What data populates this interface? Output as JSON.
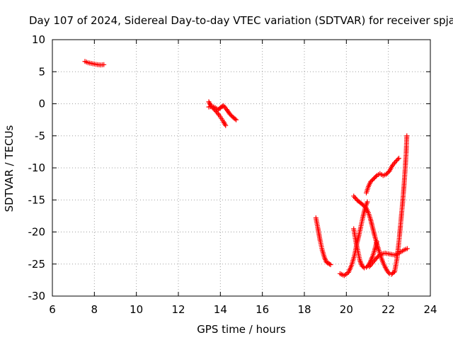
{
  "chart_data": {
    "type": "scatter",
    "title": "Day 107 of 2024, Sidereal Day-to-day VTEC variation (SDTVAR) for receiver spja",
    "xlabel": "GPS time / hours",
    "ylabel": "SDTVAR / TECUs",
    "xlim": [
      6,
      24
    ],
    "ylim": [
      -30,
      10
    ],
    "xticks": [
      6,
      8,
      10,
      12,
      14,
      16,
      18,
      20,
      22,
      24
    ],
    "yticks": [
      -30,
      -25,
      -20,
      -15,
      -10,
      -5,
      0,
      5,
      10
    ],
    "grid": true,
    "marker": "+",
    "color": "#ff0000",
    "series": [
      {
        "x": [
          7.55,
          7.7,
          7.85,
          8.0,
          8.15,
          8.3,
          8.45
        ],
        "y": [
          6.6,
          6.4,
          6.3,
          6.2,
          6.1,
          6.05,
          6.1
        ]
      },
      {
        "x": [
          13.45,
          13.55,
          13.65,
          13.75,
          13.85,
          13.95,
          14.05,
          14.15,
          14.25
        ],
        "y": [
          0.3,
          -0.3,
          -0.7,
          -1.0,
          -1.4,
          -1.8,
          -2.3,
          -2.8,
          -3.4
        ]
      },
      {
        "x": [
          13.45,
          13.6,
          13.75,
          13.9,
          14.05,
          14.15,
          14.3,
          14.45,
          14.6,
          14.75
        ],
        "y": [
          -0.5,
          -0.4,
          -0.6,
          -0.9,
          -0.5,
          -0.3,
          -0.9,
          -1.6,
          -2.1,
          -2.5
        ]
      },
      {
        "x": [
          18.55,
          18.65,
          18.75,
          18.85,
          18.95,
          19.05,
          19.15,
          19.25
        ],
        "y": [
          -17.8,
          -19.5,
          -21.3,
          -22.8,
          -23.9,
          -24.7,
          -24.9,
          -25.1
        ]
      },
      {
        "x": [
          19.7,
          19.9,
          20.1,
          20.25,
          20.4,
          20.5,
          20.6,
          20.7,
          20.8,
          20.9,
          21.0
        ],
        "y": [
          -26.5,
          -26.8,
          -26.3,
          -25.2,
          -23.5,
          -21.8,
          -20.5,
          -19.0,
          -17.5,
          -16.2,
          -15.3
        ]
      },
      {
        "x": [
          20.35,
          20.45,
          20.55,
          20.65,
          20.75,
          20.85,
          20.95,
          21.05,
          21.15,
          21.25,
          21.35,
          21.45
        ],
        "y": [
          -19.5,
          -21.5,
          -23.0,
          -24.5,
          -25.3,
          -25.6,
          -25.5,
          -25.2,
          -24.6,
          -23.8,
          -22.8,
          -21.5
        ]
      },
      {
        "x": [
          20.35,
          20.5,
          20.65,
          20.8,
          20.95,
          21.05,
          21.15,
          21.25,
          21.35,
          21.45,
          21.55,
          21.65,
          21.75,
          21.85,
          21.95,
          22.05,
          22.15,
          22.25
        ],
        "y": [
          -14.4,
          -15.0,
          -15.4,
          -15.8,
          -16.3,
          -17.0,
          -18.0,
          -19.3,
          -20.6,
          -21.8,
          -22.9,
          -23.9,
          -24.8,
          -25.5,
          -26.1,
          -26.5,
          -26.6,
          -26.3
        ]
      },
      {
        "x": [
          20.95,
          21.05,
          21.15,
          21.3,
          21.45,
          21.6,
          21.75,
          21.9,
          22.05,
          22.2,
          22.35,
          22.5
        ],
        "y": [
          -13.9,
          -12.9,
          -12.2,
          -11.7,
          -11.2,
          -10.9,
          -11.2,
          -11.0,
          -10.5,
          -9.6,
          -9.0,
          -8.5
        ]
      },
      {
        "x": [
          21.1,
          21.25,
          21.4,
          21.55,
          21.7,
          21.85,
          22.0,
          22.15,
          22.3,
          22.45,
          22.6,
          22.75,
          22.9
        ],
        "y": [
          -25.4,
          -24.8,
          -24.2,
          -23.7,
          -23.4,
          -23.3,
          -23.4,
          -23.5,
          -23.6,
          -23.4,
          -23.1,
          -22.8,
          -22.6
        ]
      },
      {
        "x": [
          22.3,
          22.42,
          22.52,
          22.6,
          22.68,
          22.75,
          22.8,
          22.85,
          22.88
        ],
        "y": [
          -26.2,
          -24.0,
          -21.0,
          -18.2,
          -15.4,
          -12.6,
          -10.2,
          -7.6,
          -5.0
        ]
      }
    ]
  }
}
